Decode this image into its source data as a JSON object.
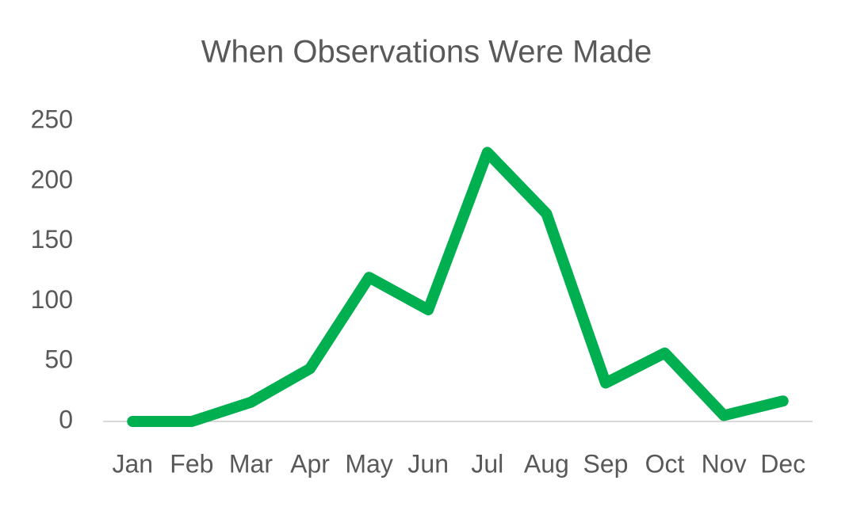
{
  "chart_data": {
    "type": "line",
    "title": "When Observations Were Made",
    "categories": [
      "Jan",
      "Feb",
      "Mar",
      "Apr",
      "May",
      "Jun",
      "Jul",
      "Aug",
      "Sep",
      "Oct",
      "Nov",
      "Dec"
    ],
    "values": [
      0,
      0,
      16,
      44,
      120,
      93,
      224,
      173,
      32,
      57,
      5,
      17
    ],
    "color": "#00b050",
    "ylim": [
      0,
      250
    ],
    "yticks": [
      0,
      50,
      100,
      150,
      200,
      250
    ],
    "grid": false
  }
}
